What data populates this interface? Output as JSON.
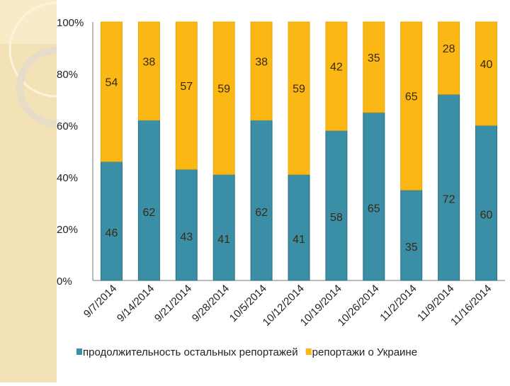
{
  "chart_data": {
    "type": "bar",
    "stacked": true,
    "percent": true,
    "categories": [
      "9/7/2014",
      "9/14/2014",
      "9/21/2014",
      "9/28/2014",
      "10/5/2014",
      "10/12/2014",
      "10/19/2014",
      "10/26/2014",
      "11/2/2014",
      "11/9/2014",
      "11/16/2014"
    ],
    "series": [
      {
        "name": "продолжительность остальных репортажей",
        "color": "#3a8ea6",
        "values": [
          46,
          62,
          43,
          41,
          62,
          41,
          58,
          65,
          35,
          72,
          60
        ]
      },
      {
        "name": "репортажи о Украине",
        "color": "#fbb714",
        "values": [
          54,
          38,
          57,
          59,
          38,
          59,
          42,
          35,
          65,
          28,
          40
        ]
      }
    ],
    "yticks": [
      "0%",
      "20%",
      "40%",
      "60%",
      "80%",
      "100%"
    ],
    "ylim": [
      0,
      100
    ],
    "legend": "bottom",
    "grid": false
  }
}
